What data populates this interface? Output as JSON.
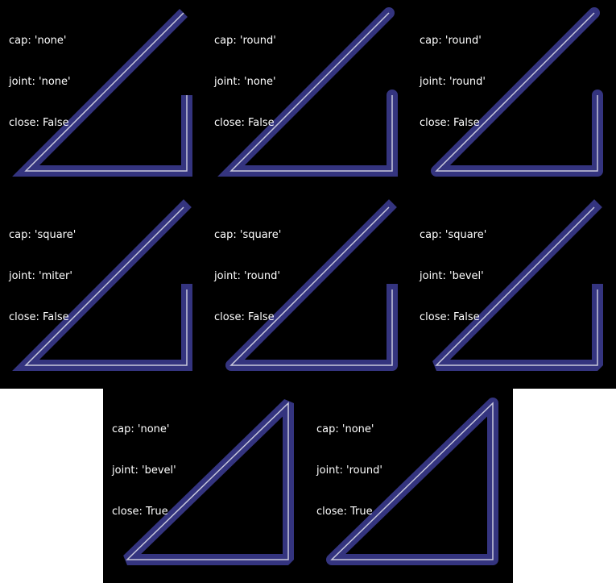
{
  "colors": {
    "background": "#000000",
    "stroke": "#34347f",
    "centerline": "#c8c8dc",
    "text": "#ffffff"
  },
  "panels": [
    {
      "cap_text": "cap: 'none'",
      "joint_text": "joint: 'none'",
      "close_text": "close: False",
      "cap": "none",
      "joint": "none",
      "close": false
    },
    {
      "cap_text": "cap: 'round'",
      "joint_text": "joint: 'none'",
      "close_text": "close: False",
      "cap": "round",
      "joint": "none",
      "close": false
    },
    {
      "cap_text": "cap: 'round'",
      "joint_text": "joint: 'round'",
      "close_text": "close: False",
      "cap": "round",
      "joint": "round",
      "close": false
    },
    {
      "cap_text": "cap: 'square'",
      "joint_text": "joint: 'miter'",
      "close_text": "close: False",
      "cap": "square",
      "joint": "miter",
      "close": false
    },
    {
      "cap_text": "cap: 'square'",
      "joint_text": "joint: 'round'",
      "close_text": "close: False",
      "cap": "square",
      "joint": "round",
      "close": false
    },
    {
      "cap_text": "cap: 'square'",
      "joint_text": "joint: 'bevel'",
      "close_text": "close: False",
      "cap": "square",
      "joint": "bevel",
      "close": false
    },
    {
      "cap_text": "cap: 'none'",
      "joint_text": "joint: 'bevel'",
      "close_text": "close: True",
      "cap": "none",
      "joint": "bevel",
      "close": true
    },
    {
      "cap_text": "cap: 'none'",
      "joint_text": "joint: 'round'",
      "close_text": "close: True",
      "cap": "none",
      "joint": "round",
      "close": true
    }
  ]
}
